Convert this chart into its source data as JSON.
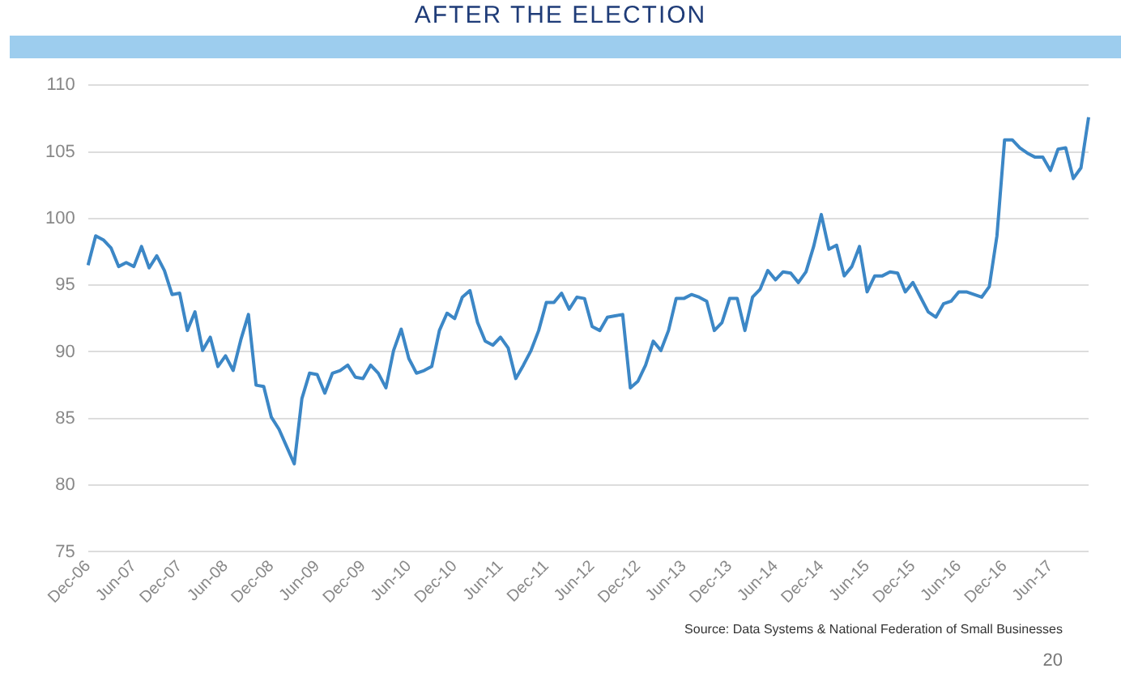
{
  "chart_data": {
    "type": "line",
    "title": "AFTER THE ELECTION",
    "categories": [
      "Dec-06",
      null,
      null,
      null,
      null,
      null,
      "Jun-07",
      null,
      null,
      null,
      null,
      null,
      "Dec-07",
      null,
      null,
      null,
      null,
      null,
      "Jun-08",
      null,
      null,
      null,
      null,
      null,
      "Dec-08",
      null,
      null,
      null,
      null,
      null,
      "Jun-09",
      null,
      null,
      null,
      null,
      null,
      "Dec-09",
      null,
      null,
      null,
      null,
      null,
      "Jun-10",
      null,
      null,
      null,
      null,
      null,
      "Dec-10",
      null,
      null,
      null,
      null,
      null,
      "Jun-11",
      null,
      null,
      null,
      null,
      null,
      "Dec-11",
      null,
      null,
      null,
      null,
      null,
      "Jun-12",
      null,
      null,
      null,
      null,
      null,
      "Dec-12",
      null,
      null,
      null,
      null,
      null,
      "Jun-13",
      null,
      null,
      null,
      null,
      null,
      "Dec-13",
      null,
      null,
      null,
      null,
      null,
      "Jun-14",
      null,
      null,
      null,
      null,
      null,
      "Dec-14",
      null,
      null,
      null,
      null,
      null,
      "Jun-15",
      null,
      null,
      null,
      null,
      null,
      "Dec-15",
      null,
      null,
      null,
      null,
      null,
      "Jun-16",
      null,
      null,
      null,
      null,
      null,
      "Dec-16",
      null,
      null,
      null,
      null,
      null,
      "Jun-17",
      null,
      null,
      null,
      null,
      null
    ],
    "series": [
      {
        "color": "#3c87c6",
        "values": [
          96.5,
          98.7,
          98.4,
          97.8,
          96.4,
          96.7,
          96.4,
          97.9,
          96.3,
          97.2,
          96.1,
          94.3,
          94.4,
          91.6,
          93.0,
          90.1,
          91.1,
          88.9,
          89.7,
          88.6,
          90.9,
          92.8,
          87.5,
          87.4,
          85.1,
          84.2,
          82.9,
          81.6,
          86.5,
          88.4,
          88.3,
          86.9,
          88.4,
          88.6,
          89.0,
          88.1,
          88.0,
          89.0,
          88.4,
          87.3,
          90.1,
          91.7,
          89.5,
          88.4,
          88.6,
          88.9,
          91.6,
          92.9,
          92.5,
          94.1,
          94.6,
          92.2,
          90.8,
          90.5,
          91.1,
          90.3,
          88.0,
          89.0,
          90.1,
          91.6,
          93.7,
          93.7,
          94.4,
          93.2,
          94.1,
          94.0,
          91.9,
          91.6,
          92.6,
          92.7,
          92.8,
          87.3,
          87.8,
          89.0,
          90.8,
          90.1,
          91.6,
          94.0,
          94.0,
          94.3,
          94.1,
          93.8,
          91.6,
          92.2,
          94.0,
          94.0,
          91.6,
          94.1,
          94.7,
          96.1,
          95.4,
          96.0,
          95.9,
          95.2,
          96.0,
          97.9,
          100.3,
          97.7,
          98.0,
          95.7,
          96.4,
          97.9,
          94.5,
          95.7,
          95.7,
          96.0,
          95.9,
          94.5,
          95.2,
          94.1,
          93.0,
          92.6,
          93.6,
          93.8,
          94.5,
          94.5,
          94.3,
          94.1,
          94.9,
          98.7,
          105.9,
          105.9,
          105.3,
          104.9,
          104.6,
          104.6,
          103.6,
          105.2,
          105.3,
          103.0,
          103.8,
          107.6
        ]
      }
    ],
    "ylim": [
      75,
      110
    ],
    "yticks": [
      75,
      80,
      85,
      90,
      95,
      100,
      105,
      110
    ],
    "grid": "y",
    "legend": false,
    "marker": "none",
    "line_style": "solid",
    "annotations": [
      "Source:  Data Systems & National Federation of Small Businesses",
      "20"
    ]
  }
}
